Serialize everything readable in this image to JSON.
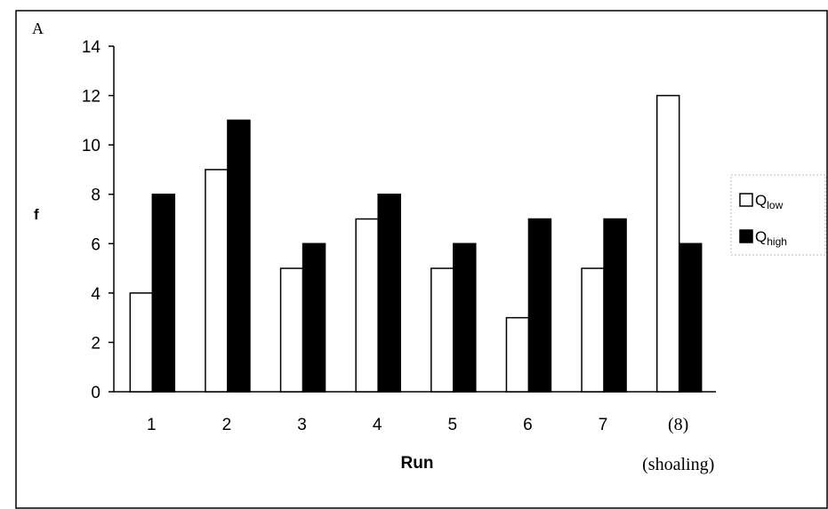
{
  "panel_label": "A",
  "chart_data": {
    "type": "bar",
    "xlabel": "Run",
    "ylabel": "f",
    "ylim": [
      0,
      14
    ],
    "yticks": [
      0,
      2,
      4,
      6,
      8,
      10,
      12,
      14
    ],
    "categories": [
      "1",
      "2",
      "3",
      "4",
      "5",
      "6",
      "7",
      "(8)"
    ],
    "category_notes": {
      "7": "(shoaling)"
    },
    "grid": false,
    "legend_position": "right",
    "series": [
      {
        "name": "Q",
        "subscript": "low",
        "color": "#ffffff",
        "values": [
          4,
          9,
          5,
          7,
          5,
          3,
          5,
          12
        ]
      },
      {
        "name": "Q",
        "subscript": "high",
        "color": "#000000",
        "values": [
          8,
          11,
          6,
          8,
          6,
          7,
          7,
          6
        ]
      }
    ]
  }
}
